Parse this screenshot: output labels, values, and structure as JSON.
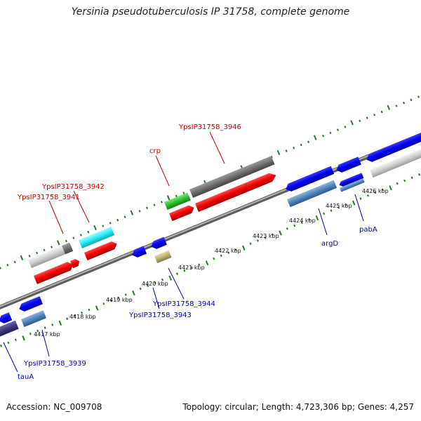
{
  "title": "Yersinia pseudotuberculosis IP 31758, complete genome",
  "footer": {
    "accession": "Accession: NC_009708",
    "stats": "Topology: circular; Length: 4,723,306 bp; Genes: 4,257"
  },
  "colors": {
    "backbone": "#8c8c8c",
    "ticks": "#1e7d1e",
    "forward_label": "#cc0000",
    "reverse_label": "#0000bb"
  },
  "kbp_labels": [
    "4417 kbp",
    "4418 kbp",
    "4419 kbp",
    "4420 kbp",
    "4421 kbp",
    "4422 kbp",
    "4423 kbp",
    "4424 kbp",
    "4425 kbp",
    "4426 kbp"
  ],
  "gene_labels": {
    "forward": [
      "YpsIP31758_3946",
      "crp",
      "YpsIP31758_3942",
      "YpsIP31758_3941"
    ],
    "reverse": [
      "argD",
      "pabA",
      "YpsIP31758_3944",
      "YpsIP31758_3943",
      "YpsIP31758_3939",
      "tauA"
    ]
  }
}
